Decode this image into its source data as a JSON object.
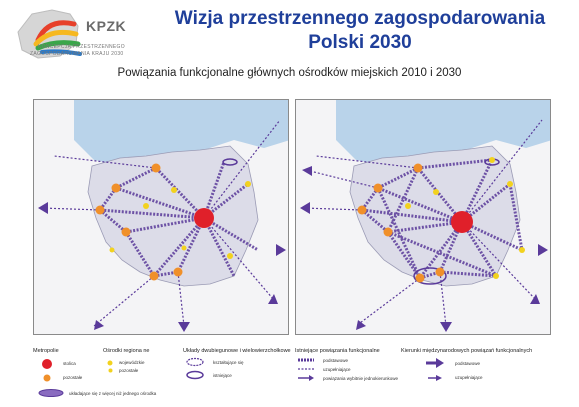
{
  "logo": {
    "name": "KPZK",
    "line1": "KONCEPCJA PRZESTRZENNEGO",
    "line2": "ZAGOSPODAROWANIA KRAJU 2030"
  },
  "title": {
    "line1": "Wizja przestrzennego zagospodarowania",
    "line2": "Polski 2030"
  },
  "subtitle": "Powiązania funkcjonalne głównych ośrodków miejskich 2010 i 2030",
  "colors": {
    "title": "#1f3f9a",
    "link": "#5a3a9a",
    "capital": "#e0202a",
    "metropolis": "#f0902a",
    "regional": "#f2d21e",
    "sea": "#b9d3ea",
    "country": "#dcdce8"
  },
  "legend": {
    "metropolie": {
      "heading": "Metropolie",
      "stolica": "stolica",
      "pozostale": "pozostałe"
    },
    "osrodki": {
      "heading": "Ośrodki regiona ne",
      "wojewodzkie": "wojewódzkie",
      "pozostale": "pozostałe"
    },
    "uklady": {
      "heading": "Układy dwubiegunowe i wielowierzchołkowe",
      "ksztaltujace": "kształtujące się",
      "istniejace": "istniejące",
      "wiecej": "układające się z więcej niż jednego ośrodka"
    },
    "istniejace_powiazania": {
      "heading": "Istniejące powiązania funkcjonalne",
      "podstawowe": "podstawowe",
      "uzupelniajace": "uzupełniające",
      "wybitnie": "powiązania wybitnie jednokierunkowe"
    },
    "kierunki": {
      "heading": "Kierunki międzynarodowych powiązań funkcjonalnych",
      "podstawowe": "podstawowe",
      "uzupelniajace": "uzupełniające"
    }
  }
}
